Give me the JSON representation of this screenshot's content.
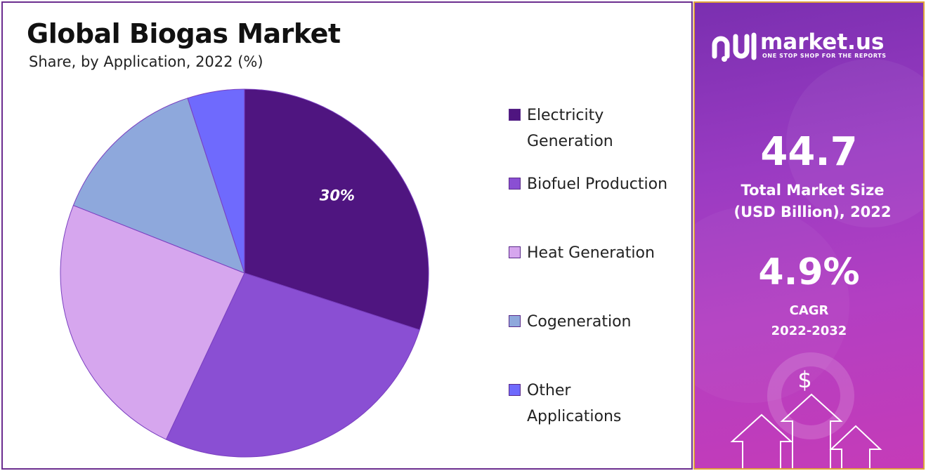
{
  "chart_data": {
    "type": "pie",
    "title": "Global Biogas Market",
    "subtitle": "Share, by Application, 2022 (%)",
    "categories": [
      "Electricity Generation",
      "Biofuel Production",
      "Heat Generation",
      "Cogeneration",
      "Other Applications"
    ],
    "values": [
      30,
      27,
      24,
      14,
      5
    ],
    "colors": [
      "#4f1580",
      "#8a4fd3",
      "#d6a6ee",
      "#8ea8dc",
      "#6f6afd"
    ],
    "data_labels": [
      {
        "index": 0,
        "text": "30%"
      }
    ],
    "legend_position": "right"
  },
  "legend": {
    "items": [
      {
        "label": "Electricity Generation",
        "color": "#4f1580"
      },
      {
        "label": "Biofuel Production",
        "color": "#8a4fd3"
      },
      {
        "label": "Heat Generation",
        "color": "#d6a6ee"
      },
      {
        "label": "Cogeneration",
        "color": "#8ea8dc"
      },
      {
        "label": "Other Applications",
        "color": "#6f6afd"
      }
    ]
  },
  "sidebar": {
    "brand": "market.us",
    "tagline": "ONE STOP SHOP FOR THE REPORTS",
    "market_size_value": "44.7",
    "market_size_label_line1": "Total Market Size",
    "market_size_label_line2": "(USD Billion), 2022",
    "cagr_value": "4.9%",
    "cagr_label_line1": "CAGR",
    "cagr_label_line2": "2022-2032",
    "currency_symbol": "$",
    "icons": [
      "market-us-logo-icon",
      "dollar-icon",
      "arrow-up-icon"
    ]
  }
}
